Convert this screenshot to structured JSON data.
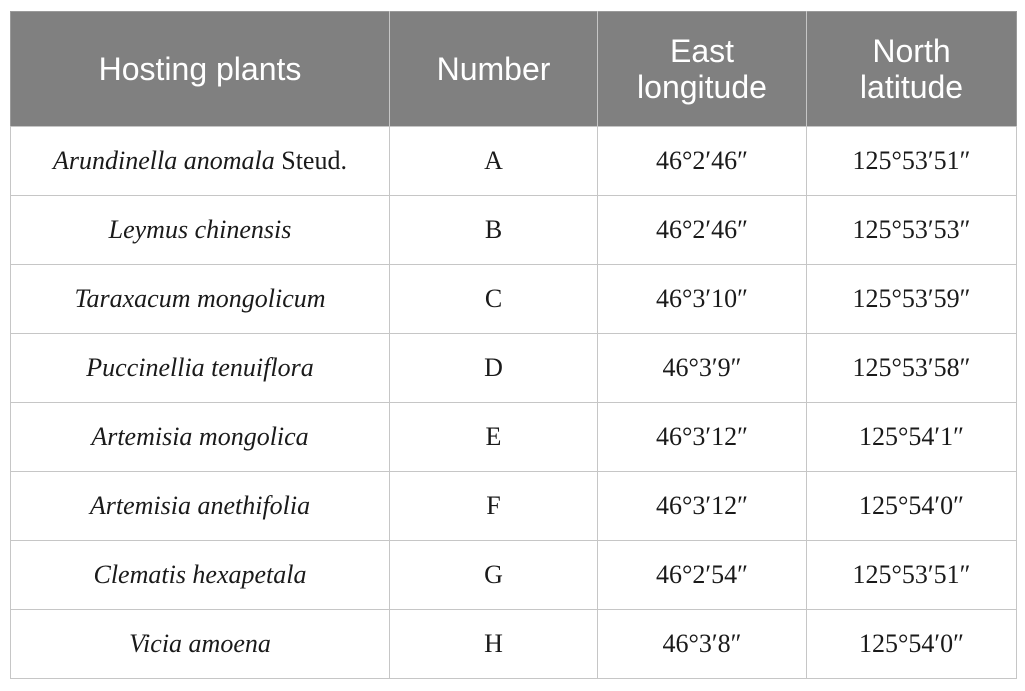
{
  "table": {
    "headers": {
      "col1": [
        "Hosting plants"
      ],
      "col2": [
        "Number"
      ],
      "col3": [
        "East",
        "longitude"
      ],
      "col4": [
        "North",
        "latitude"
      ]
    },
    "rows": [
      {
        "species": "Arundinella anomala",
        "author": " Steud.",
        "number": "A",
        "east": "46°2′46″",
        "north": "125°53′51″"
      },
      {
        "species": "Leymus chinensis",
        "author": "",
        "number": "B",
        "east": "46°2′46″",
        "north": "125°53′53″"
      },
      {
        "species": "Taraxacum mongolicum",
        "author": "",
        "number": "C",
        "east": "46°3′10″",
        "north": "125°53′59″"
      },
      {
        "species": "Puccinellia tenuiflora",
        "author": "",
        "number": "D",
        "east": "46°3′9″",
        "north": "125°53′58″"
      },
      {
        "species": "Artemisia mongolica",
        "author": "",
        "number": "E",
        "east": "46°3′12″",
        "north": "125°54′1″"
      },
      {
        "species": "Artemisia anethifolia",
        "author": "",
        "number": "F",
        "east": "46°3′12″",
        "north": "125°54′0″"
      },
      {
        "species": "Clematis hexapetala",
        "author": "",
        "number": "G",
        "east": "46°2′54″",
        "north": "125°53′51″"
      },
      {
        "species": "Vicia amoena",
        "author": "",
        "number": "H",
        "east": "46°3′8″",
        "north": "125°54′0″"
      }
    ]
  }
}
